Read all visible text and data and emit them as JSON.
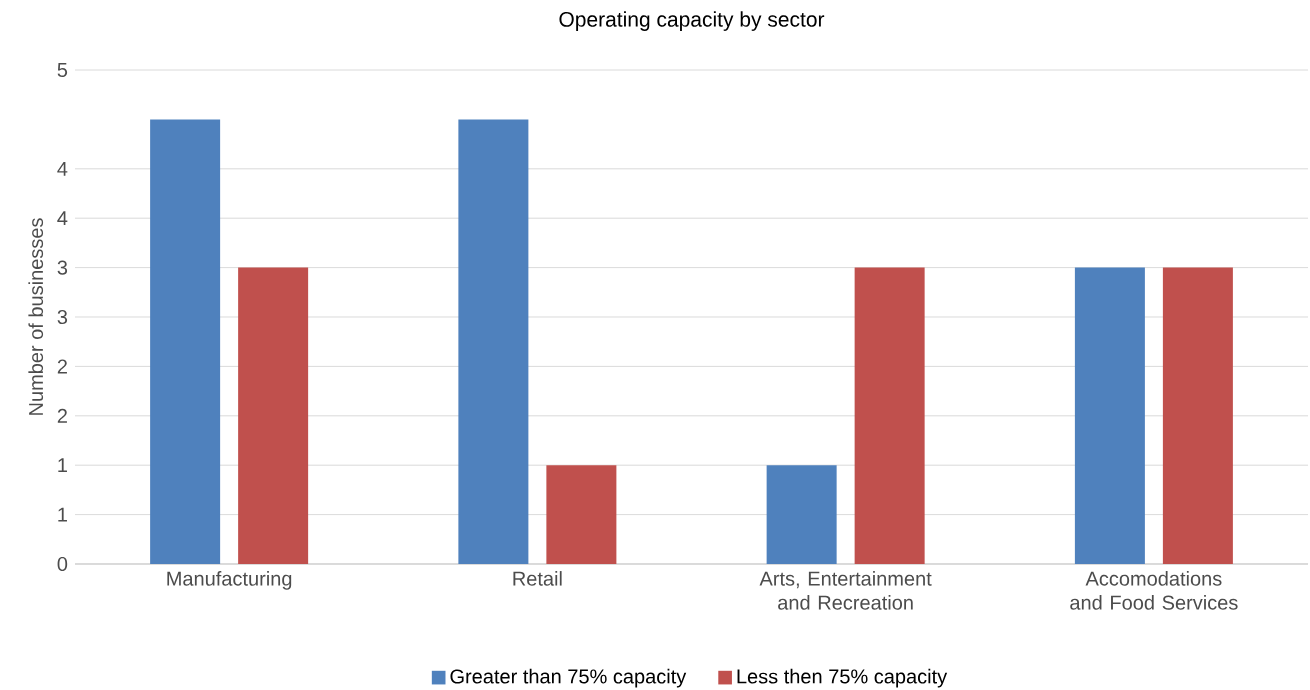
{
  "chart_data": {
    "type": "bar",
    "title": "Operating capacity by sector",
    "ylabel": "Number of businesses",
    "categories": [
      "Manufacturing",
      "Retail",
      "Arts, Entertainment and Recreation",
      "Accomodations and Food Services"
    ],
    "series": [
      {
        "name": "Greater than 75% capacity",
        "color": "#4f81bd",
        "values": [
          4.5,
          4.5,
          1,
          3
        ]
      },
      {
        "name": "Less then 75% capacity",
        "color": "#c0504d",
        "values": [
          3,
          1,
          3,
          3
        ]
      }
    ],
    "ylim": [
      0,
      5
    ],
    "yticks": [
      0,
      {
        "value": 0.5,
        "label": "1"
      },
      1,
      {
        "value": 1.5,
        "label": "2"
      },
      2,
      {
        "value": 2.5,
        "label": "3"
      },
      3,
      {
        "value": 3.5,
        "label": "4"
      },
      4,
      5
    ],
    "grid": "y",
    "legend": "bottom"
  }
}
